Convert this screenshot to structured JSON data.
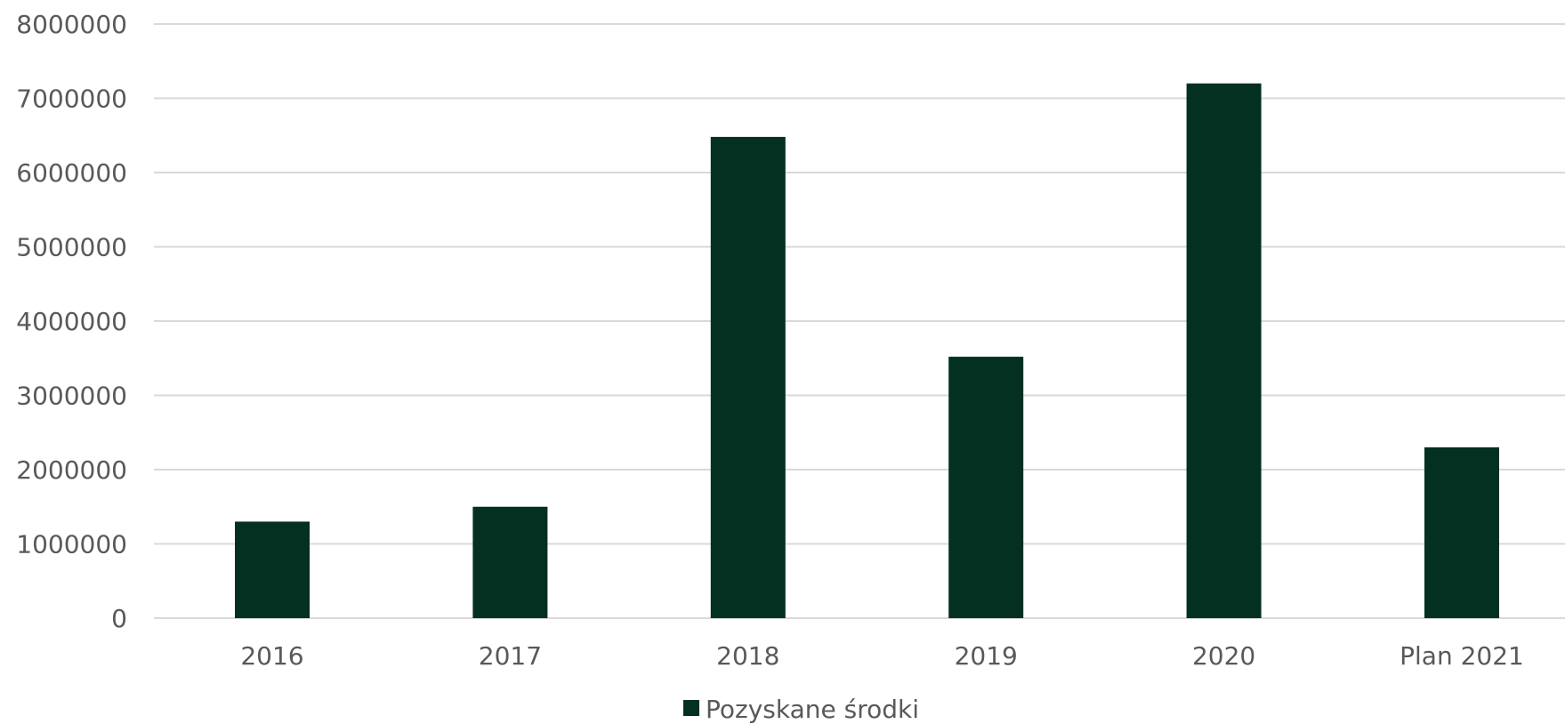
{
  "chart_data": {
    "type": "bar",
    "categories": [
      "2016",
      "2017",
      "2018",
      "2019",
      "2020",
      "Plan 2021"
    ],
    "series": [
      {
        "name": "Pozyskane środki",
        "values": [
          1300000,
          1500000,
          6480000,
          3520000,
          7200000,
          2300000
        ],
        "color": "#033020"
      }
    ],
    "ylim": [
      0,
      8000000
    ],
    "yticks": [
      "0",
      "1000000",
      "2000000",
      "3000000",
      "4000000",
      "5000000",
      "6000000",
      "7000000",
      "8000000"
    ],
    "grid": true,
    "legend_position": "bottom",
    "gridline_color": "#d9d9d9",
    "text_color": "#595959"
  }
}
